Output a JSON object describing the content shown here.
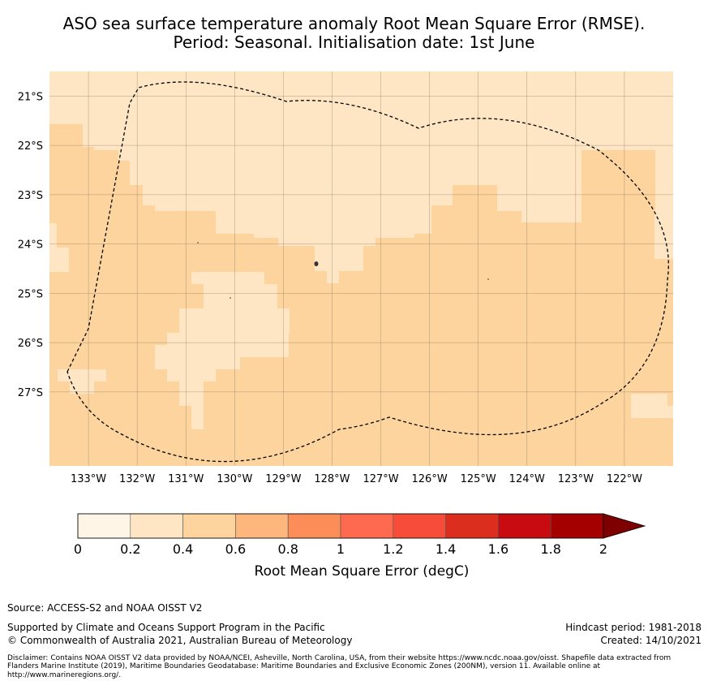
{
  "title": {
    "line1": "ASO sea surface temperature anomaly Root Mean Square Error (RMSE).",
    "line2": "Period: Seasonal. Initialisation date: 1st June"
  },
  "map": {
    "lon_range": [
      -133.8,
      -121.0
    ],
    "lat_range": [
      -28.5,
      -20.5
    ],
    "lon_ticks": [
      "133°W",
      "132°W",
      "131°W",
      "130°W",
      "129°W",
      "128°W",
      "127°W",
      "126°W",
      "125°W",
      "124°W",
      "123°W",
      "122°W"
    ],
    "lat_ticks": [
      "21°S",
      "22°S",
      "23°S",
      "24°S",
      "25°S",
      "26°S",
      "27°S"
    ],
    "base_color": "#fdd39e",
    "light_color": "#fee6c5",
    "eez_boundary_style": "dashed"
  },
  "colorbar": {
    "label": "Root Mean Square Error (degC)",
    "ticks": [
      "0",
      "0.2",
      "0.4",
      "0.6",
      "0.8",
      "1",
      "1.2",
      "1.4",
      "1.6",
      "1.8",
      "2"
    ],
    "colors": [
      "#fff5e6",
      "#fee6c5",
      "#fdd39e",
      "#fdb77c",
      "#fc8d59",
      "#fd6a4f",
      "#f84c3a",
      "#dc2e1e",
      "#c70b10",
      "#a50000"
    ],
    "extend_color": "#7f0000"
  },
  "footer": {
    "source": "Source: ACCESS-S2 and NOAA OISST V2",
    "supported": "Supported by Climate and Oceans Support Program in the Pacific",
    "copyright": "© Commonwealth of Australia 2021, Australian Bureau of Meteorology",
    "hindcast": "Hindcast period: 1981-2018",
    "created": "Created: 14/10/2021",
    "disclaimer": "Disclaimer: Contains NOAA OISST V2 data provided by NOAA/NCEI, Asheville, North Carolina, USA, from their website https://www.ncdc.noaa.gov/oisst. Shapefile data extracted from Flanders Marine Institute (2019), Maritime Boundaries Geodatabase: Maritime Boundaries and Exclusive Economic Zones (200NM), version 11. Available online at http://www.marineregions.org/."
  }
}
